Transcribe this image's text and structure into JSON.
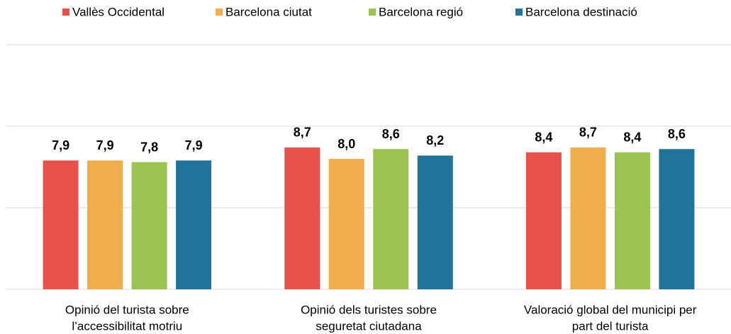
{
  "chart_data": {
    "type": "bar",
    "categories": [
      [
        "Opinió del turista sobre",
        "l’accessibilitat motriu"
      ],
      [
        "Opinió dels turistes sobre",
        "seguretat ciutadana"
      ],
      [
        "Valoració global del municipi per",
        "part del turista"
      ]
    ],
    "series": [
      {
        "name": "Vallès Occidental",
        "color": "#e8514a",
        "values": [
          7.9,
          8.7,
          8.4
        ],
        "value_labels": [
          "7,9",
          "8,7",
          "8,4"
        ]
      },
      {
        "name": "Barcelona ciutat",
        "color": "#f0ae4b",
        "values": [
          7.9,
          8.0,
          8.7
        ],
        "value_labels": [
          "7,9",
          "8,0",
          "8,7"
        ]
      },
      {
        "name": "Barcelona regió",
        "color": "#9bc452",
        "values": [
          7.8,
          8.6,
          8.4
        ],
        "value_labels": [
          "7,8",
          "8,6",
          "8,4"
        ]
      },
      {
        "name": "Barcelona destinació",
        "color": "#22739a",
        "values": [
          7.9,
          8.2,
          8.6
        ],
        "value_labels": [
          "7,9",
          "8,2",
          "8,6"
        ]
      }
    ],
    "ylim": [
      0,
      15
    ],
    "yticks": [
      0,
      5,
      10,
      15
    ],
    "grid": true,
    "legend": "top"
  }
}
